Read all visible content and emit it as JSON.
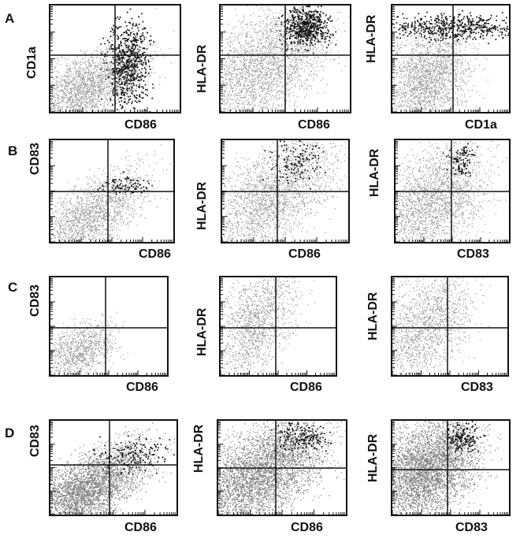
{
  "figure": {
    "rows": [
      {
        "label": "A",
        "panels": [
          {
            "y_label": "CD1a",
            "x_label": "CD86",
            "pattern": "A1"
          },
          {
            "y_label": "HLA-DR",
            "x_label": "CD86",
            "pattern": "A2"
          },
          {
            "y_label": "HLA-DR",
            "x_label": "CD1a",
            "pattern": "A3"
          }
        ]
      },
      {
        "label": "B",
        "panels": [
          {
            "y_label": "CD83",
            "x_label": "CD86",
            "pattern": "B1"
          },
          {
            "y_label": "HLA-DR",
            "x_label": "CD86",
            "pattern": "B2"
          },
          {
            "y_label": "HLA-DR",
            "x_label": "CD83",
            "pattern": "B3"
          }
        ]
      },
      {
        "label": "C",
        "panels": [
          {
            "y_label": "CD83",
            "x_label": "CD86",
            "pattern": "C1"
          },
          {
            "y_label": "HLA-DR",
            "x_label": "CD86",
            "pattern": "C2"
          },
          {
            "y_label": "HLA-DR",
            "x_label": "CD83",
            "pattern": "C3"
          }
        ]
      },
      {
        "label": "D",
        "panels": [
          {
            "y_label": "CD83",
            "x_label": "CD86",
            "pattern": "D1"
          },
          {
            "y_label": "HLA-DR",
            "x_label": "CD86",
            "pattern": "D2"
          },
          {
            "y_label": "HLA-DR",
            "x_label": "CD83",
            "pattern": "D3"
          }
        ]
      }
    ],
    "colors": {
      "ink": "#111111",
      "background_dots": "#9a9a9a",
      "dense_background_dots": "#7a7a7a",
      "highlight_dots": "#111111"
    }
  }
}
